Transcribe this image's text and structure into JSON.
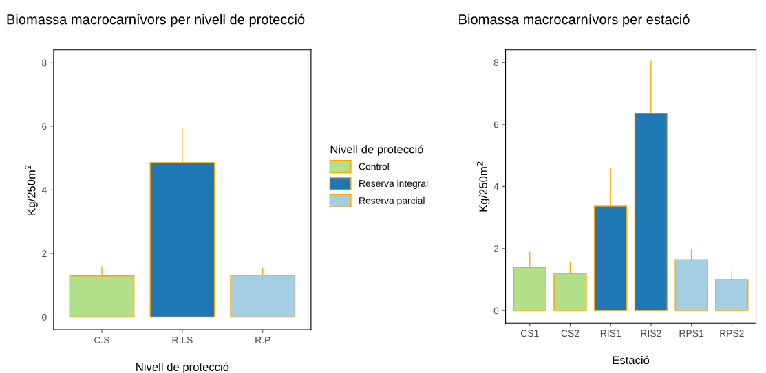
{
  "chart_data": [
    {
      "type": "bar",
      "title": "Biomassa macrocarnívors per nivell de protecció",
      "xlabel": "Nivell de protecció",
      "ylabel": "Kg/250m$^{2}$",
      "legend_title": "Nivell de protecció",
      "legend": "right",
      "categories": [
        "C.S",
        "R.I.S",
        "R.P"
      ],
      "series": [
        {
          "name": "Control",
          "color": "#b2df8a",
          "values": [
            1.29,
            null,
            null
          ],
          "errors": [
            [
              1.29,
              1.6
            ],
            null,
            null
          ]
        },
        {
          "name": "Reserva integral",
          "color": "#1f78b4",
          "values": [
            null,
            4.85,
            null
          ],
          "errors": [
            null,
            [
              4.85,
              5.95
            ],
            null
          ]
        },
        {
          "name": "Reserva parcial",
          "color": "#a6cee3",
          "values": [
            null,
            null,
            1.31
          ],
          "errors": [
            null,
            null,
            [
              1.31,
              1.55
            ]
          ]
        }
      ],
      "ylim": [
        -0.4,
        8.4
      ],
      "yticks": [
        0,
        2,
        4,
        6,
        8
      ],
      "grid": false
    },
    {
      "type": "bar",
      "title": "Biomassa macrocarnívors per estació",
      "xlabel": "Estació",
      "ylabel": "Kg/250m$^{2}$",
      "categories": [
        "CS1",
        "CS2",
        "RIS1",
        "RIS2",
        "RPS1",
        "RPS2"
      ],
      "series": [
        {
          "color": "#b2df8a",
          "values": [
            1.4,
            1.2,
            null,
            null,
            null,
            null
          ],
          "errors": [
            [
              1.4,
              1.9
            ],
            [
              1.2,
              1.57
            ],
            null,
            null,
            null,
            null
          ]
        },
        {
          "color": "#1f78b4",
          "values": [
            null,
            null,
            3.37,
            6.36,
            null,
            null
          ],
          "errors": [
            null,
            null,
            [
              3.37,
              4.61
            ],
            [
              6.36,
              8.05
            ],
            null,
            null
          ]
        },
        {
          "color": "#a6cee3",
          "values": [
            null,
            null,
            null,
            null,
            1.64,
            1.0
          ],
          "errors": [
            null,
            null,
            null,
            null,
            [
              1.64,
              2.0
            ],
            [
              1.0,
              1.29
            ]
          ]
        }
      ],
      "ylim": [
        -0.4,
        8.4
      ],
      "yticks": [
        0,
        2,
        4,
        6,
        8
      ],
      "grid": false
    }
  ]
}
